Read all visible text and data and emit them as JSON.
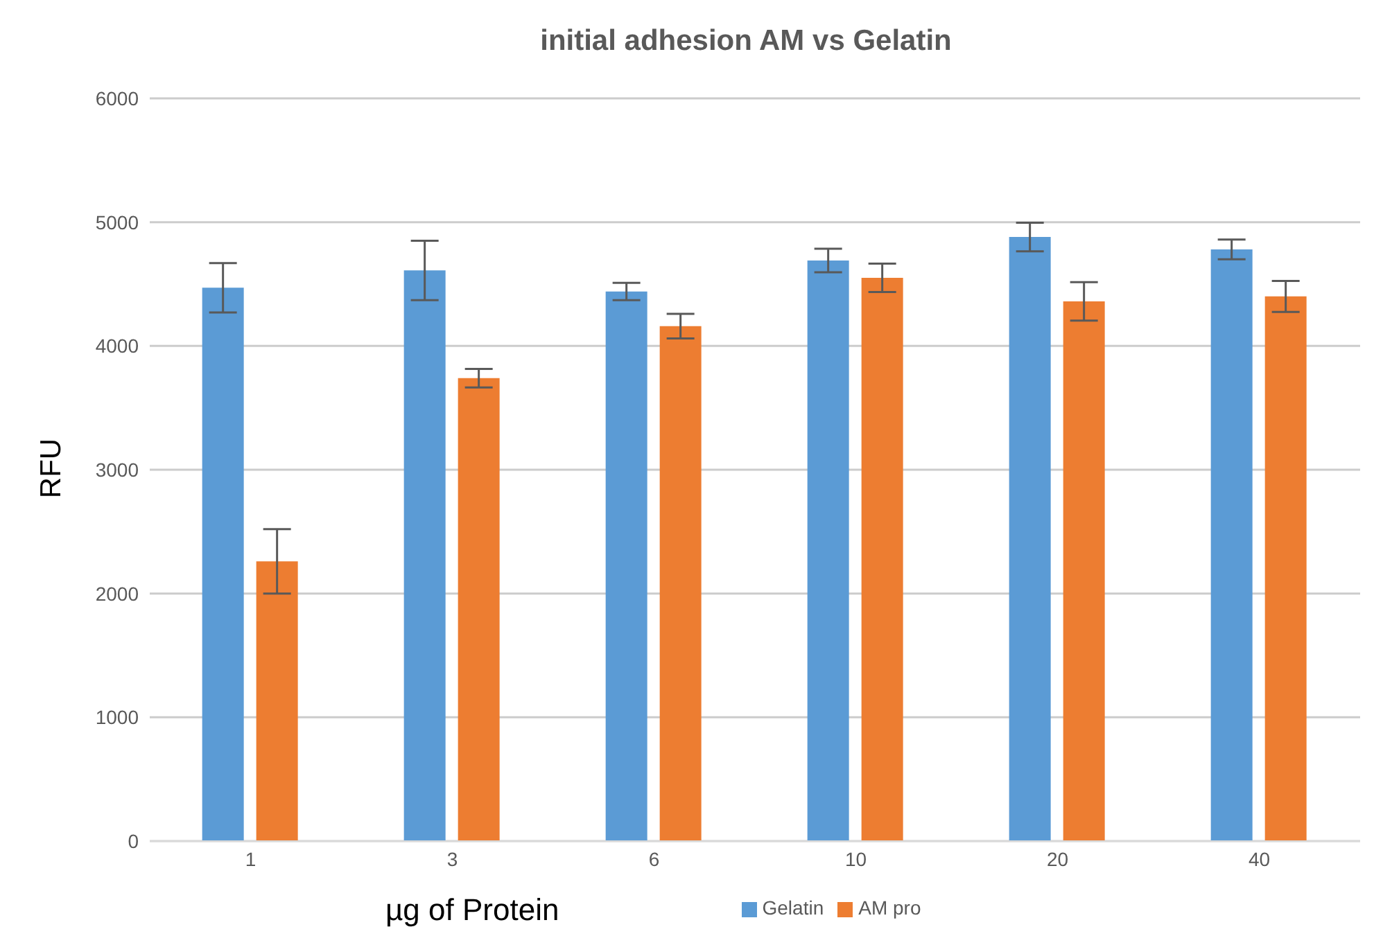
{
  "chart_data": {
    "type": "bar",
    "title": "initial adhesion AM vs Gelatin",
    "xlabel": "µg of Protein",
    "ylabel": "RFU",
    "categories": [
      "1",
      "3",
      "6",
      "10",
      "20",
      "40"
    ],
    "series": [
      {
        "name": "Gelatin",
        "color": "#5b9bd5",
        "values": [
          4470,
          4610,
          4440,
          4690,
          4880,
          4780
        ],
        "errors": [
          200,
          240,
          70,
          95,
          115,
          80
        ]
      },
      {
        "name": "AM pro",
        "color": "#ed7d31",
        "values": [
          2260,
          3740,
          4160,
          4550,
          4360,
          4400
        ],
        "errors": [
          260,
          75,
          100,
          115,
          155,
          125
        ]
      }
    ],
    "ylim": [
      0,
      6000
    ],
    "yticks": [
      0,
      1000,
      2000,
      3000,
      4000,
      5000,
      6000
    ],
    "grid": "y",
    "legend": "bottom"
  }
}
